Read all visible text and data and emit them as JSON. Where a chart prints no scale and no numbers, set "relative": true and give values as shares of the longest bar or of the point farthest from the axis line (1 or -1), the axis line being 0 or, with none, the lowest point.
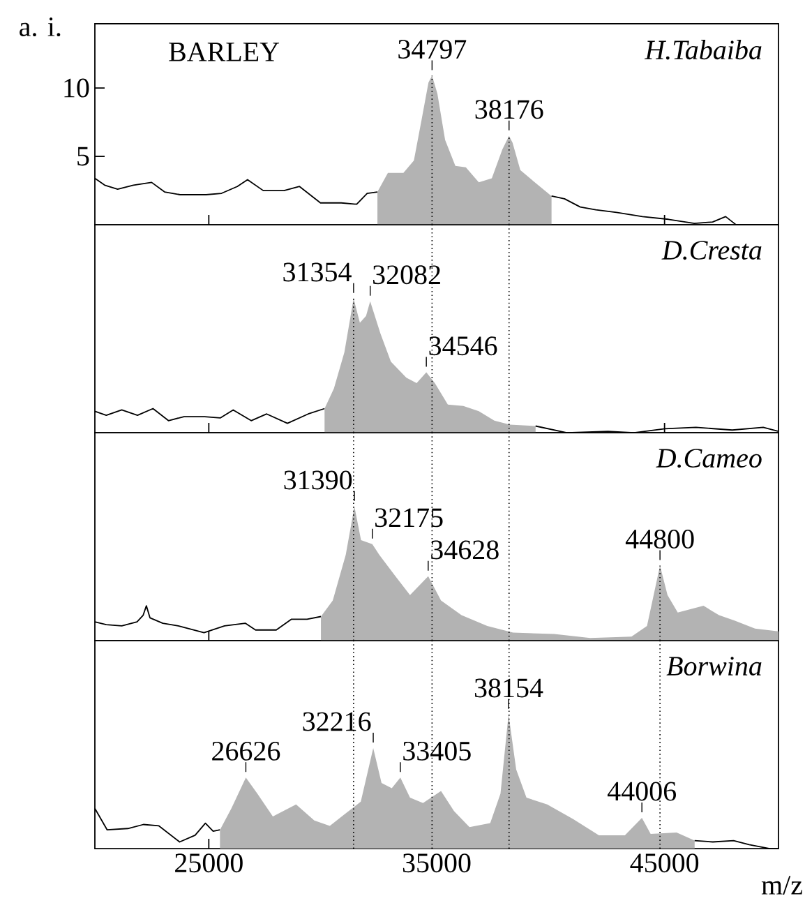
{
  "chart_data": [
    {
      "type": "line",
      "title": "H.Tabaiba",
      "ylabel": "a. i.",
      "xlim": [
        20000,
        50000
      ],
      "ylim": [
        0,
        14.7
      ],
      "xticks": [
        25000,
        35000,
        45000
      ],
      "yticks": [
        5,
        10
      ],
      "tick_labels": "y",
      "series": [
        {
          "type": "line",
          "color": "#000000",
          "x": [
            20000,
            20430,
            21000,
            21690,
            22490,
            23060,
            23740,
            24880,
            25560,
            26250,
            26700,
            27390,
            28300,
            28980,
            29900,
            30810,
            31490,
            31950,
            32400
          ],
          "values": [
            3.4,
            2.9,
            2.6,
            2.9,
            3.1,
            2.4,
            2.2,
            2.2,
            2.3,
            2.8,
            3.3,
            2.5,
            2.5,
            2.8,
            1.6,
            1.6,
            1.5,
            2.3,
            2.4
          ]
        },
        {
          "type": "area",
          "color": "#b3b3b3",
          "x": [
            32400,
            32860,
            33540,
            34000,
            34340,
            34640,
            34797,
            35030,
            35370,
            35820,
            36280,
            36850,
            37420,
            37880,
            38176,
            38330,
            38670,
            39240,
            40040
          ],
          "values": [
            2.4,
            3.8,
            3.8,
            4.7,
            7.7,
            10.4,
            10.9,
            9.6,
            6.2,
            4.3,
            4.2,
            3.1,
            3.4,
            5.5,
            6.5,
            6.0,
            4.0,
            3.2,
            2.1
          ]
        },
        {
          "type": "line",
          "color": "#000000",
          "x": [
            40040,
            40610,
            41300,
            41980,
            42890,
            44030,
            45170,
            46310,
            47110,
            47680,
            48140,
            50000
          ],
          "values": [
            2.1,
            1.9,
            1.3,
            1.1,
            0.9,
            0.6,
            0.4,
            0.1,
            0.2,
            0.6,
            0,
            0
          ]
        }
      ],
      "annotations": [
        "BARLEY",
        {
          "text": "34797",
          "x": 34797,
          "y": 10.9
        },
        {
          "text": "38176",
          "x": 38176,
          "y": 6.5
        }
      ],
      "ref_lines": [
        {
          "axis": "x",
          "value": 34797,
          "line_style": "dotted",
          "color": "#000000"
        },
        {
          "axis": "x",
          "value": 38176,
          "line_style": "dotted",
          "color": "#000000"
        }
      ]
    },
    {
      "type": "line",
      "title": "D.Cresta",
      "relative": true,
      "xlim": [
        20000,
        50000
      ],
      "xticks": [
        25000,
        35000,
        45000
      ],
      "tick_labels": false,
      "series": [
        {
          "type": "line",
          "color": "#000000",
          "x": [
            20000,
            20500,
            21180,
            21870,
            22550,
            23230,
            23910,
            24820,
            25500,
            26070,
            26860,
            27540,
            28450,
            29360,
            30080
          ],
          "values": [
            0.16,
            0.13,
            0.17,
            0.13,
            0.18,
            0.09,
            0.12,
            0.12,
            0.11,
            0.17,
            0.09,
            0.14,
            0.07,
            0.14,
            0.18
          ]
        },
        {
          "type": "area",
          "color": "#b3b3b3",
          "x": [
            30080,
            30490,
            30950,
            31354,
            31630,
            31900,
            32082,
            32530,
            32990,
            33670,
            34120,
            34546,
            34920,
            35490,
            36170,
            36850,
            37530,
            38210,
            39340
          ],
          "values": [
            0.18,
            0.33,
            0.6,
            1,
            0.82,
            0.87,
            0.98,
            0.74,
            0.53,
            0.41,
            0.37,
            0.45,
            0.37,
            0.21,
            0.2,
            0.16,
            0.09,
            0.06,
            0.05
          ]
        },
        {
          "type": "line",
          "color": "#000000",
          "x": [
            39340,
            40710,
            42520,
            43660,
            45020,
            46380,
            47970,
            49330,
            50000
          ],
          "values": [
            0.05,
            0,
            0.01,
            0,
            0.03,
            0.04,
            0.02,
            0.04,
            0.01
          ]
        }
      ],
      "annotations": [
        {
          "text": "31354",
          "x": 31354,
          "y": 1
        },
        {
          "text": "32082",
          "x": 32082,
          "y": 0.98
        },
        {
          "text": "34546",
          "x": 34546,
          "y": 0.45
        }
      ],
      "ref_lines": [
        {
          "axis": "x",
          "value": 31354,
          "line_style": "dotted",
          "color": "#000000"
        },
        {
          "axis": "x",
          "value": 34797,
          "line_style": "dotted",
          "color": "#000000"
        },
        {
          "axis": "x",
          "value": 38176,
          "line_style": "dotted",
          "color": "#000000"
        }
      ]
    },
    {
      "type": "line",
      "title": "D.Cameo",
      "relative": true,
      "xlim": [
        20000,
        50000
      ],
      "xticks": [
        25000,
        35000,
        45000
      ],
      "tick_labels": false,
      "series": [
        {
          "type": "line",
          "color": "#000000",
          "x": [
            20000,
            20500,
            21180,
            21850,
            22120,
            22260,
            22420,
            22980,
            23660,
            24790,
            25690,
            26600,
            27050,
            27960,
            28630,
            29310,
            29920
          ],
          "values": [
            0.14,
            0.12,
            0.11,
            0.14,
            0.19,
            0.26,
            0.17,
            0.13,
            0.11,
            0.06,
            0.11,
            0.13,
            0.08,
            0.08,
            0.16,
            0.16,
            0.18
          ]
        },
        {
          "type": "area",
          "color": "#b3b3b3",
          "x": [
            29920,
            30440,
            31010,
            31390,
            31680,
            32175,
            32480,
            33150,
            33830,
            34628,
            35190,
            36090,
            37220,
            38350,
            40160,
            41740,
            43550,
            44230,
            44800,
            45130,
            45580,
            46710,
            47390,
            48070,
            48970,
            50000
          ],
          "values": [
            0.18,
            0.3,
            0.64,
            1,
            0.75,
            0.72,
            0.64,
            0.49,
            0.34,
            0.48,
            0.3,
            0.19,
            0.11,
            0.06,
            0.05,
            0.02,
            0.03,
            0.11,
            0.56,
            0.34,
            0.21,
            0.26,
            0.19,
            0.15,
            0.09,
            0.07
          ]
        }
      ],
      "annotations": [
        {
          "text": "31390",
          "x": 31390,
          "y": 1
        },
        {
          "text": "32175",
          "x": 32175,
          "y": 0.72
        },
        {
          "text": "34628",
          "x": 34628,
          "y": 0.48
        },
        {
          "text": "44800",
          "x": 44800,
          "y": 0.56
        }
      ],
      "ref_lines": [
        {
          "axis": "x",
          "value": 31354,
          "line_style": "dotted",
          "color": "#000000"
        },
        {
          "axis": "x",
          "value": 34797,
          "line_style": "dotted",
          "color": "#000000"
        },
        {
          "axis": "x",
          "value": 38176,
          "line_style": "dotted",
          "color": "#000000"
        },
        {
          "axis": "x",
          "value": 44800,
          "line_style": "dotted",
          "color": "#000000"
        }
      ]
    },
    {
      "type": "line",
      "title": "Borwina",
      "xlabel": "m/z",
      "relative": true,
      "xlim": [
        20000,
        50000
      ],
      "xticks": [
        25000,
        35000,
        45000
      ],
      "tick_labels": "x",
      "series": [
        {
          "type": "line",
          "color": "#000000",
          "x": [
            20000,
            20540,
            21450,
            22130,
            22810,
            23720,
            24400,
            24850,
            25190,
            25490
          ],
          "values": [
            0.3,
            0.14,
            0.15,
            0.18,
            0.17,
            0.05,
            0.1,
            0.19,
            0.13,
            0.14
          ]
        },
        {
          "type": "area",
          "color": "#b3b3b3",
          "x": [
            25490,
            25990,
            26626,
            27130,
            27810,
            28830,
            29630,
            30310,
            30990,
            31670,
            32216,
            32580,
            33030,
            33405,
            33830,
            34400,
            35190,
            35760,
            36440,
            37350,
            37800,
            38154,
            38490,
            38940,
            39850,
            40990,
            42120,
            43260,
            44006,
            44390,
            45530,
            46320
          ],
          "values": [
            0.14,
            0.3,
            0.53,
            0.41,
            0.24,
            0.33,
            0.21,
            0.17,
            0.26,
            0.35,
            0.75,
            0.49,
            0.45,
            0.53,
            0.38,
            0.34,
            0.43,
            0.28,
            0.16,
            0.19,
            0.41,
            1,
            0.59,
            0.38,
            0.33,
            0.22,
            0.1,
            0.1,
            0.23,
            0.11,
            0.12,
            0.06
          ]
        },
        {
          "type": "line",
          "color": "#000000",
          "x": [
            46320,
            47120,
            48030,
            48710,
            49620,
            50000
          ],
          "values": [
            0.06,
            0.05,
            0.06,
            0.03,
            0,
            0
          ]
        }
      ],
      "annotations": [
        {
          "text": "26626",
          "x": 26626,
          "y": 0.53
        },
        {
          "text": "32216",
          "x": 32216,
          "y": 0.75
        },
        {
          "text": "33405",
          "x": 33405,
          "y": 0.53
        },
        {
          "text": "38154",
          "x": 38154,
          "y": 1
        },
        {
          "text": "44006",
          "x": 44006,
          "y": 0.23
        }
      ],
      "ref_lines": [
        {
          "axis": "x",
          "value": 31354,
          "line_style": "dotted",
          "color": "#000000"
        },
        {
          "axis": "x",
          "value": 34797,
          "line_style": "dotted",
          "color": "#000000"
        },
        {
          "axis": "x",
          "value": 38176,
          "line_style": "dotted",
          "color": "#000000"
        },
        {
          "axis": "x",
          "value": 44800,
          "line_style": "dotted",
          "color": "#000000"
        }
      ]
    }
  ]
}
